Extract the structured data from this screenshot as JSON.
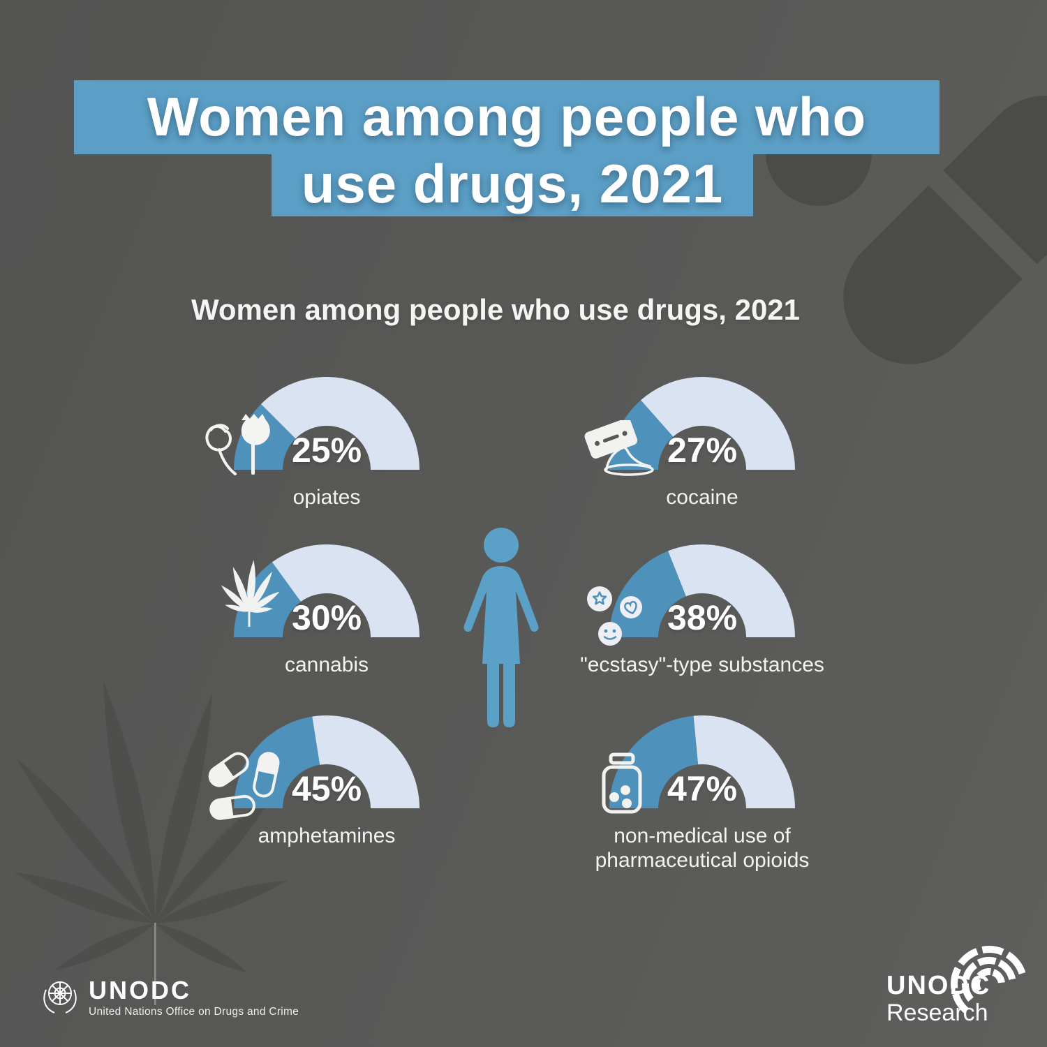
{
  "header": {
    "title_line1": "Women among people who",
    "title_line2": "use drugs, 2021"
  },
  "chart": {
    "subtitle": "Women among people who use drugs, 2021",
    "gauges": [
      {
        "label": "opiates",
        "value": 25,
        "value_label": "25%",
        "icon": "poppy-flower-icon"
      },
      {
        "label": "cocaine",
        "value": 27,
        "value_label": "27%",
        "icon": "razor-blade-powder-icon"
      },
      {
        "label": "cannabis",
        "value": 30,
        "value_label": "30%",
        "icon": "cannabis-leaf-icon"
      },
      {
        "label": "\"ecstasy\"-type substances",
        "value": 38,
        "value_label": "38%",
        "icon": "ecstasy-pills-icon"
      },
      {
        "label": "amphetamines",
        "value": 45,
        "value_label": "45%",
        "icon": "capsule-pills-icon"
      },
      {
        "label": "non-medical use of pharmaceutical opioids",
        "value": 47,
        "value_label": "47%",
        "icon": "pill-bottle-icon"
      }
    ]
  },
  "chart_data": {
    "type": "pie",
    "variant": "semicircular gauge small-multiples; each value is the filled share of a 180-degree donut starting at the left",
    "title": "Women among people who use drugs, 2021",
    "unit": "%",
    "value_range": [
      0,
      100
    ],
    "categories": [
      "opiates",
      "cocaine",
      "cannabis",
      "\"ecstasy\"-type substances",
      "amphetamines",
      "non-medical use of pharmaceutical opioids"
    ],
    "values": [
      25,
      27,
      30,
      38,
      45,
      47
    ],
    "legend": "none",
    "grid": false
  },
  "footer": {
    "left_logo_acronym": "UNODC",
    "left_logo_name": "United Nations Office on Drugs and Crime",
    "right_logo_line1": "UNODC",
    "right_logo_line2": "Research"
  },
  "colors": {
    "accent-blue": "#5B9EC6",
    "gauge-fill": "#4E92BC",
    "gauge-track": "#D9E3F2",
    "figure-blue": "#5BA0C6",
    "background": "#585856",
    "decor-dark": "#4B4B49",
    "leaf-dark": "#4E4E4C",
    "text-white": "#FFFFFF"
  }
}
